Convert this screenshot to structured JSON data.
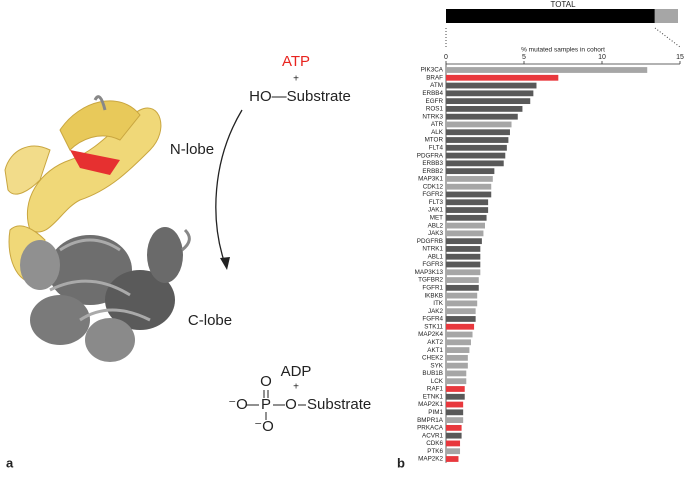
{
  "diagram": {
    "panel_a": "a",
    "panel_b": "b",
    "atp": "ATP",
    "plus_top": "+",
    "ho_substrate": "HO—Substrate",
    "n_lobe": "N-lobe",
    "c_lobe": "C-lobe",
    "adp": "ADP",
    "plus_bottom": "+",
    "phosphate": {
      "o_top": "O",
      "o_left": "⁻O",
      "p": "P",
      "o_right": "O",
      "substrate": "Substrate",
      "o_bottom": "⁻O"
    }
  },
  "total": {
    "title": "TOTAL",
    "values": [
      90,
      10
    ],
    "colors": [
      "#000000",
      "#a6a6a6"
    ],
    "lim": [
      0,
      100
    ]
  },
  "chart_data": {
    "type": "hbar",
    "xlabel": "% mutated samples in cohort",
    "categories": [
      "PIK3CA",
      "BRAF",
      "ATM",
      "ERBB4",
      "EGFR",
      "ROS1",
      "NTRK3",
      "ATR",
      "ALK",
      "MTOR",
      "FLT4",
      "PDGFRA",
      "ERBB3",
      "ERBB2",
      "MAP3K1",
      "CDK12",
      "FGFR2",
      "FLT3",
      "JAK1",
      "MET",
      "ABL2",
      "JAK3",
      "PDGFRB",
      "NTRK1",
      "ABL1",
      "FGFR3",
      "MAP3K13",
      "TGFBR2",
      "FGFR1",
      "IKBKB",
      "ITK",
      "JAK2",
      "FGFR4",
      "STK11",
      "MAP2K4",
      "AKT2",
      "AKT1",
      "CHEK2",
      "SYK",
      "BUB1B",
      "LCK",
      "RAF1",
      "ETNK1",
      "MAP2K1",
      "PIM1",
      "BMPR1A",
      "PRKACA",
      "ACVR1",
      "CDK6",
      "PTK6",
      "MAP2K2"
    ],
    "values": [
      12.9,
      7.2,
      5.8,
      5.6,
      5.4,
      4.9,
      4.6,
      4.2,
      4.1,
      4.0,
      3.9,
      3.8,
      3.7,
      3.1,
      3.0,
      2.9,
      2.9,
      2.7,
      2.7,
      2.6,
      2.5,
      2.4,
      2.3,
      2.2,
      2.2,
      2.2,
      2.2,
      2.1,
      2.1,
      2.0,
      2.0,
      1.9,
      1.9,
      1.8,
      1.7,
      1.6,
      1.5,
      1.4,
      1.4,
      1.3,
      1.3,
      1.2,
      1.2,
      1.1,
      1.1,
      1.1,
      1.0,
      1.0,
      0.9,
      0.9,
      0.8
    ],
    "colors": [
      "#a6a6a6",
      "#e8383d",
      "#595959",
      "#595959",
      "#595959",
      "#595959",
      "#595959",
      "#a6a6a6",
      "#595959",
      "#595959",
      "#595959",
      "#595959",
      "#595959",
      "#595959",
      "#a6a6a6",
      "#a6a6a6",
      "#595959",
      "#595959",
      "#595959",
      "#595959",
      "#a6a6a6",
      "#a6a6a6",
      "#595959",
      "#595959",
      "#595959",
      "#595959",
      "#a6a6a6",
      "#a6a6a6",
      "#595959",
      "#a6a6a6",
      "#a6a6a6",
      "#a6a6a6",
      "#595959",
      "#e8383d",
      "#a6a6a6",
      "#a6a6a6",
      "#a6a6a6",
      "#a6a6a6",
      "#a6a6a6",
      "#a6a6a6",
      "#a6a6a6",
      "#e8383d",
      "#595959",
      "#e8383d",
      "#595959",
      "#a6a6a6",
      "#e8383d",
      "#595959",
      "#e8383d",
      "#a6a6a6",
      "#e8383d"
    ],
    "xlim": [
      0,
      15
    ],
    "xticks": [
      0,
      5,
      10,
      15
    ]
  }
}
